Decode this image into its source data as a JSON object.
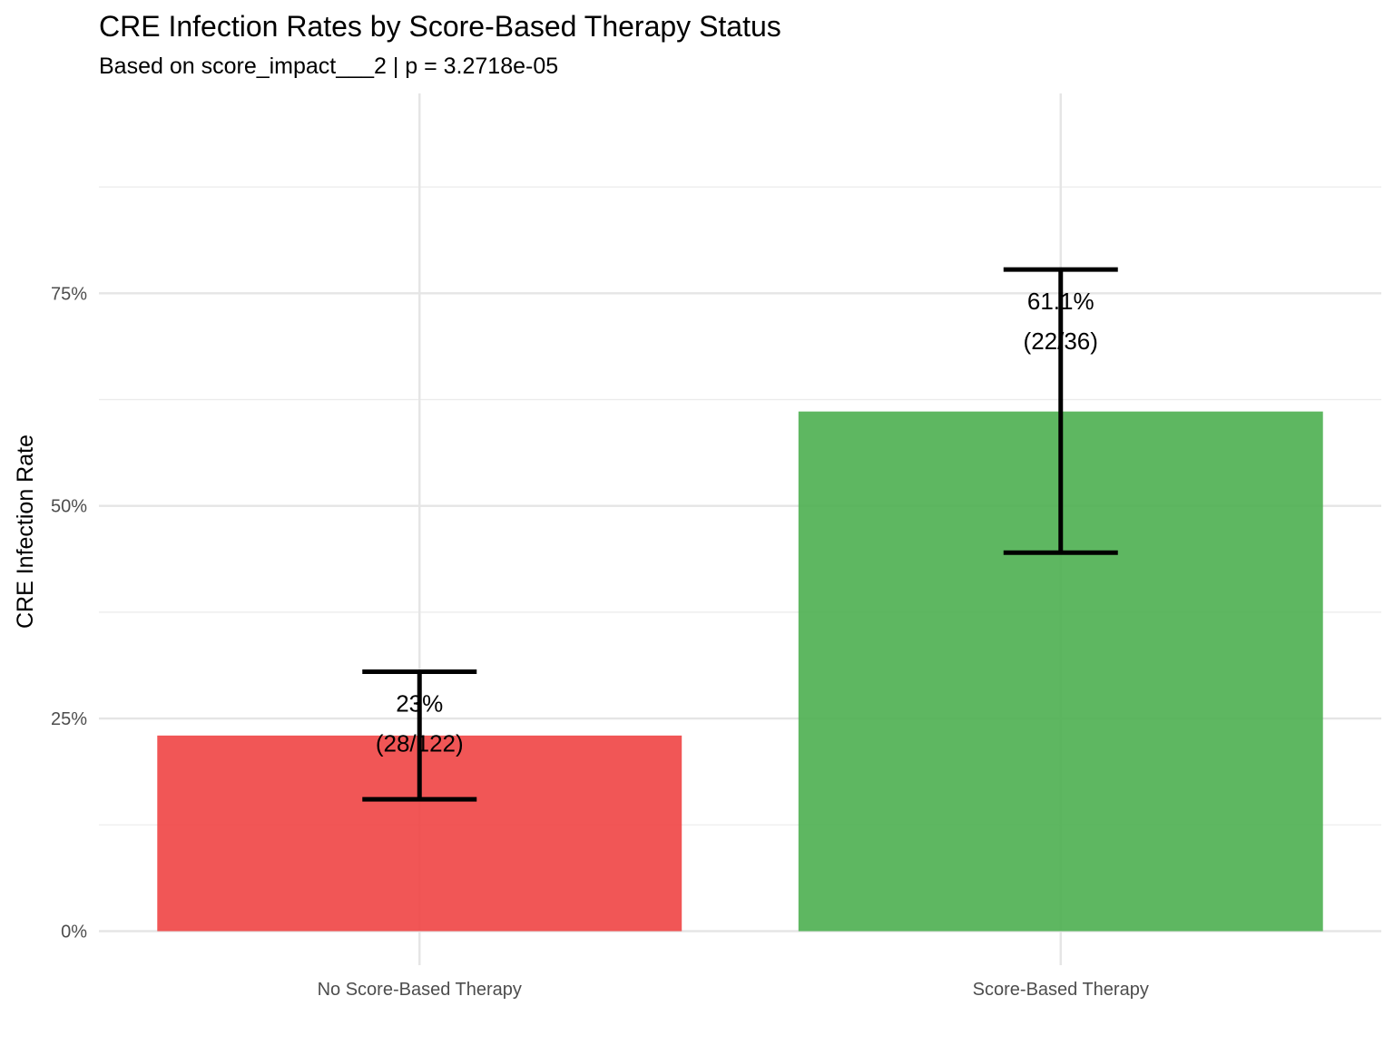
{
  "chart_data": {
    "type": "bar",
    "title": "CRE Infection Rates by Score-Based Therapy Status",
    "subtitle": "Based on score_impact___2 | p = 3.2718e-05",
    "xlabel": "",
    "ylabel": "CRE Infection Rate",
    "categories": [
      "No Score-Based Therapy",
      "Score-Based Therapy"
    ],
    "values": [
      0.23,
      0.611
    ],
    "error_low": [
      0.155,
      0.445
    ],
    "error_high": [
      0.305,
      0.778
    ],
    "value_labels": [
      "23%",
      "61.1%"
    ],
    "count_labels": [
      "(28/122)",
      "(22/36)"
    ],
    "colors": [
      "#EF4444",
      "#4CAF50"
    ],
    "ylim": [
      -0.04,
      0.985
    ],
    "yticks": [
      0,
      0.25,
      0.5,
      0.75
    ],
    "ytick_labels": [
      "0%",
      "25%",
      "50%",
      "75%"
    ],
    "grid": true,
    "legend": "none"
  }
}
